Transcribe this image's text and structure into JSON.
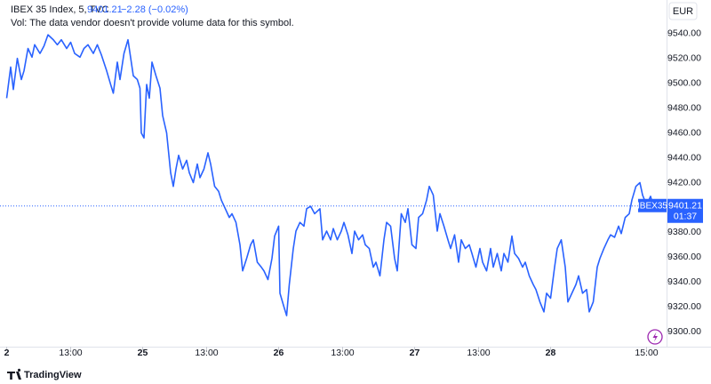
{
  "chart_data": {
    "type": "line",
    "title": "IBEX 35 Index, 5, TVC",
    "last_price": 9401.21,
    "change_label": "−2.28 (−0.02%)",
    "note": "Vol: The data vendor doesn't provide volume data for this symbol.",
    "currency": "EUR",
    "symbol_label": "IBEX35",
    "countdown": "01:37",
    "brand": "TradingView",
    "x": [
      0,
      3,
      5,
      8,
      11,
      13,
      16,
      19,
      21,
      25,
      28,
      31,
      35,
      38,
      41,
      45,
      48,
      51,
      55,
      58,
      61,
      65,
      68,
      71,
      75,
      78,
      80,
      83,
      85,
      88,
      91,
      95,
      98,
      100,
      101,
      103,
      105,
      107,
      109,
      112,
      115,
      117,
      120,
      123,
      125,
      127,
      129,
      132,
      135,
      137,
      140,
      143,
      145,
      148,
      151,
      153,
      156,
      159,
      161,
      164,
      167,
      169,
      172,
      175,
      177,
      180,
      183,
      185,
      188,
      191,
      193,
      196,
      199,
      201,
      204,
      205,
      208,
      210,
      212,
      215,
      217,
      220,
      223,
      225,
      228,
      231,
      235,
      237,
      240,
      243,
      245,
      248,
      251,
      253,
      256,
      259,
      261,
      264,
      267,
      269,
      272,
      275,
      277,
      280,
      283,
      285,
      288,
      291,
      293,
      296,
      299,
      301,
      304,
      307,
      309,
      312,
      315,
      317,
      320,
      323,
      325,
      328,
      331,
      333,
      336,
      339,
      341,
      344,
      347,
      349,
      352,
      355,
      357,
      360,
      363,
      365,
      368,
      371,
      373,
      376,
      379,
      381,
      384,
      387,
      389,
      392,
      395,
      397,
      400,
      403,
      405,
      408,
      411,
      413,
      416,
      419,
      421,
      424,
      427,
      429,
      432,
      435,
      437,
      440,
      443,
      445,
      448,
      451,
      453,
      456,
      459,
      461,
      464,
      467,
      469,
      472,
      475,
      477,
      480,
      483,
      485
    ],
    "series": [
      {
        "name": "IBEX35",
        "color": "#2962ff",
        "values": [
          9488,
          9513,
          9495,
          9520,
          9503,
          9510,
          9528,
          9521,
          9531,
          9524,
          9530,
          9539,
          9535,
          9531,
          9535,
          9528,
          9533,
          9524,
          9521,
          9528,
          9531,
          9524,
          9531,
          9523,
          9510,
          9499,
          9492,
          9517,
          9503,
          9524,
          9535,
          9506,
          9503,
          9496,
          9460,
          9456,
          9499,
          9488,
          9517,
          9506,
          9496,
          9474,
          9460,
          9428,
          9417,
          9431,
          9442,
          9431,
          9438,
          9428,
          9420,
          9435,
          9424,
          9431,
          9444,
          9435,
          9417,
          9413,
          9406,
          9399,
          9392,
          9395,
          9388,
          9370,
          9349,
          9359,
          9370,
          9374,
          9356,
          9352,
          9349,
          9342,
          9359,
          9377,
          9385,
          9331,
          9320,
          9313,
          9338,
          9367,
          9381,
          9388,
          9385,
          9399,
          9401,
          9395,
          9399,
          9374,
          9381,
          9374,
          9383,
          9374,
          9381,
          9388,
          9378,
          9363,
          9381,
          9374,
          9378,
          9370,
          9367,
          9352,
          9356,
          9345,
          9374,
          9388,
          9385,
          9359,
          9349,
          9395,
          9388,
          9399,
          9370,
          9367,
          9392,
          9395,
          9406,
          9417,
          9410,
          9381,
          9395,
          9385,
          9374,
          9367,
          9378,
          9356,
          9374,
          9367,
          9370,
          9363,
          9352,
          9367,
          9356,
          9349,
          9367,
          9352,
          9363,
          9349,
          9363,
          9356,
          9377,
          9363,
          9359,
          9352,
          9356,
          9345,
          9338,
          9334,
          9324,
          9316,
          9331,
          9327,
          9352,
          9367,
          9374,
          9352,
          9324,
          9331,
          9338,
          9345,
          9331,
          9334,
          9316,
          9324,
          9352,
          9359,
          9367,
          9374,
          9378,
          9376,
          9385,
          9379,
          9392,
          9395,
          9406,
          9417,
          9420,
          9410,
          9402,
          9409,
          9401.21
        ]
      }
    ],
    "xlim": [
      -5,
      495
    ],
    "xticks": [
      {
        "value": 0,
        "label": "2"
      },
      {
        "value": 48,
        "label": "13:00"
      },
      {
        "value": 102,
        "label": "25"
      },
      {
        "value": 150,
        "label": "13:00"
      },
      {
        "value": 204,
        "label": "26"
      },
      {
        "value": 252,
        "label": "13:00"
      },
      {
        "value": 306,
        "label": "27"
      },
      {
        "value": 354,
        "label": "13:00"
      },
      {
        "value": 408,
        "label": "28"
      },
      {
        "value": 480,
        "label": "15:00"
      }
    ],
    "ylim": [
      9288,
      9567
    ],
    "yticks": [
      {
        "value": 9300,
        "label": "9300.00"
      },
      {
        "value": 9320,
        "label": "9320.00"
      },
      {
        "value": 9340,
        "label": "9340.00"
      },
      {
        "value": 9360,
        "label": "9360.00"
      },
      {
        "value": 9380,
        "label": "9380.00"
      },
      {
        "value": 9400,
        "label": "9400.00"
      },
      {
        "value": 9420,
        "label": "9420.00"
      },
      {
        "value": 9440,
        "label": "9440.00"
      },
      {
        "value": 9460,
        "label": "9460.00"
      },
      {
        "value": 9480,
        "label": "9480.00"
      },
      {
        "value": 9500,
        "label": "9500.00"
      },
      {
        "value": 9520,
        "label": "9520.00"
      },
      {
        "value": 9540,
        "label": "9540.00"
      }
    ],
    "grid": false
  }
}
